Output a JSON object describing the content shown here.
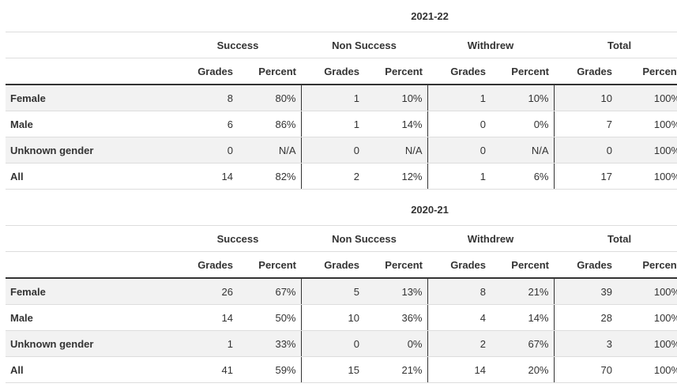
{
  "tables": [
    {
      "year": "2021-22",
      "groups": [
        "Success",
        "Non Success",
        "Withdrew",
        "Total"
      ],
      "subheaders": [
        "Grades",
        "Percent"
      ],
      "rows": [
        {
          "label": "Female",
          "cells": [
            "8",
            "80%",
            "1",
            "10%",
            "1",
            "10%",
            "10",
            "100%"
          ]
        },
        {
          "label": "Male",
          "cells": [
            "6",
            "86%",
            "1",
            "14%",
            "0",
            "0%",
            "7",
            "100%"
          ]
        },
        {
          "label": "Unknown gender",
          "cells": [
            "0",
            "N/A",
            "0",
            "N/A",
            "0",
            "N/A",
            "0",
            "100%"
          ]
        },
        {
          "label": "All",
          "cells": [
            "14",
            "82%",
            "2",
            "12%",
            "1",
            "6%",
            "17",
            "100%"
          ]
        }
      ]
    },
    {
      "year": "2020-21",
      "groups": [
        "Success",
        "Non Success",
        "Withdrew",
        "Total"
      ],
      "subheaders": [
        "Grades",
        "Percent"
      ],
      "rows": [
        {
          "label": "Female",
          "cells": [
            "26",
            "67%",
            "5",
            "13%",
            "8",
            "21%",
            "39",
            "100%"
          ]
        },
        {
          "label": "Male",
          "cells": [
            "14",
            "50%",
            "10",
            "36%",
            "4",
            "14%",
            "28",
            "100%"
          ]
        },
        {
          "label": "Unknown gender",
          "cells": [
            "1",
            "33%",
            "0",
            "0%",
            "2",
            "67%",
            "3",
            "100%"
          ]
        },
        {
          "label": "All",
          "cells": [
            "41",
            "59%",
            "15",
            "21%",
            "14",
            "20%",
            "70",
            "100%"
          ]
        }
      ]
    }
  ]
}
